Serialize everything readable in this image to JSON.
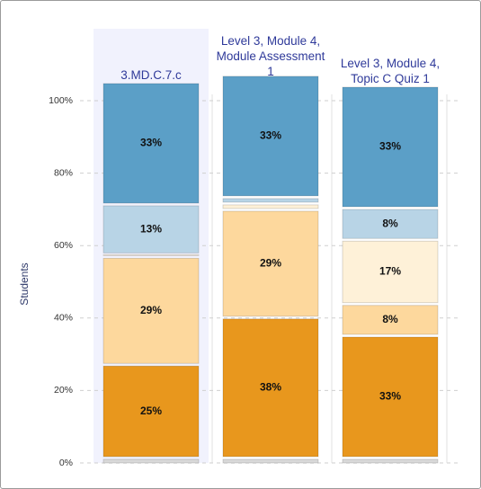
{
  "chart_data": {
    "type": "stacked_bar",
    "y_label": "Students",
    "categories": [
      "3.MD.C.7.c",
      "Level 3, Module 4, Module Assessment 1",
      "Level 3, Module 4, Topic C Quiz 1"
    ],
    "highlight_category": 0,
    "ylim": [
      0,
      100
    ],
    "yticks": [
      {
        "value": 0,
        "label": "0%"
      },
      {
        "value": 20,
        "label": "20%"
      },
      {
        "value": 40,
        "label": "40%"
      },
      {
        "value": 60,
        "label": "60%"
      },
      {
        "value": 80,
        "label": "80%"
      },
      {
        "value": 100,
        "label": "100%"
      }
    ],
    "grid": true,
    "series": [
      {
        "color": "#d9d9d9",
        "values": [
          1,
          1,
          1
        ],
        "value_labels": [
          null,
          null,
          null
        ]
      },
      {
        "color": "#e8971d",
        "values": [
          25,
          38,
          33
        ],
        "value_labels": [
          "25%",
          "38%",
          "33%"
        ]
      },
      {
        "color": "#fdd89d",
        "values": [
          29,
          29,
          8
        ],
        "value_labels": [
          "29%",
          "29%",
          "8%"
        ]
      },
      {
        "color": "#fef1d8",
        "values": [
          0,
          1,
          17
        ],
        "value_labels": [
          null,
          null,
          "17%"
        ]
      },
      {
        "color": "#b8d4e6",
        "values": [
          13,
          1,
          8
        ],
        "value_labels": [
          "13%",
          null,
          "8%"
        ]
      },
      {
        "color": "#5b9fc7",
        "values": [
          33,
          33,
          33
        ],
        "value_labels": [
          "33%",
          "33%",
          "33%"
        ]
      }
    ]
  }
}
